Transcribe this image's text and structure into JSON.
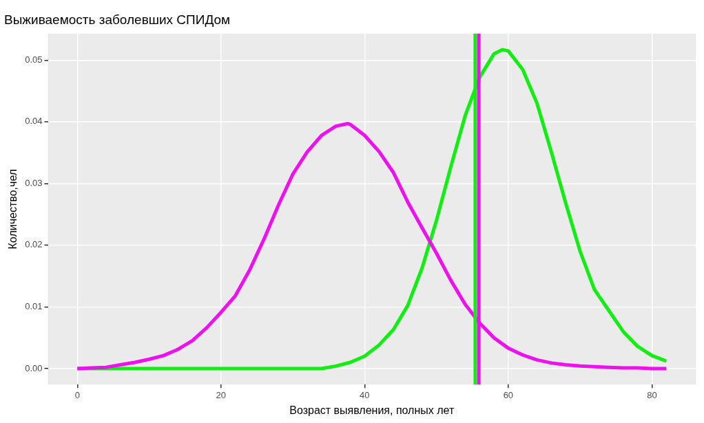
{
  "chart_data": {
    "type": "line",
    "title": "Выживаемость заболевших СПИДом",
    "xlabel": "Возраст выявления, полных лет",
    "ylabel": "Количество,чел",
    "xlim": [
      -4.1,
      86.1
    ],
    "xticks": [
      0,
      20,
      40,
      60,
      80
    ],
    "ylim": [
      -0.0026,
      0.0543
    ],
    "yticks": [
      {
        "value": 0,
        "label": "0.00"
      },
      {
        "value": 0.01,
        "label": "0.01"
      },
      {
        "value": 0.02,
        "label": "0.02"
      },
      {
        "value": 0.03,
        "label": "0.03"
      },
      {
        "value": 0.04,
        "label": "0.04"
      },
      {
        "value": 0.05,
        "label": "0.05"
      }
    ],
    "grid": true,
    "legend": false,
    "marker": "none",
    "line_style": "solid",
    "series": [
      {
        "color": "#ee10ee",
        "x": [
          0,
          2,
          4,
          6,
          8,
          10,
          12,
          14,
          16,
          18,
          20,
          22,
          24,
          26,
          28,
          30,
          32,
          34,
          36,
          37.6,
          38,
          40,
          42,
          44,
          46,
          48,
          50,
          52,
          54,
          56,
          58,
          60,
          62,
          64,
          66,
          68,
          70,
          72,
          74,
          76,
          78,
          80,
          82
        ],
        "values": [
          0,
          0.0001,
          0.0002,
          0.0006,
          0.001,
          0.0015,
          0.0021,
          0.0031,
          0.0045,
          0.0066,
          0.0091,
          0.0118,
          0.016,
          0.021,
          0.0265,
          0.0315,
          0.0351,
          0.0378,
          0.0393,
          0.0397,
          0.0396,
          0.0378,
          0.0352,
          0.0318,
          0.027,
          0.0228,
          0.0187,
          0.0143,
          0.0104,
          0.0074,
          0.005,
          0.0033,
          0.0022,
          0.0014,
          0.0009,
          0.0006,
          0.0004,
          0.0003,
          0.0002,
          0.0001,
          0.0001,
          0,
          0
        ]
      },
      {
        "color": "#11ee11",
        "x": [
          0,
          4,
          8,
          12,
          16,
          20,
          24,
          28,
          32,
          34,
          36,
          38,
          40,
          42,
          44,
          46,
          48,
          50,
          52,
          54,
          56,
          58,
          59.2,
          60,
          62,
          64,
          66,
          68,
          70,
          72,
          74,
          76,
          78,
          80,
          82
        ],
        "values": [
          0,
          0,
          0,
          0,
          0,
          0,
          0,
          0,
          0,
          0,
          0.0004,
          0.001,
          0.002,
          0.0038,
          0.0063,
          0.0102,
          0.0163,
          0.024,
          0.0327,
          0.041,
          0.0472,
          0.051,
          0.0517,
          0.0515,
          0.0485,
          0.043,
          0.0351,
          0.0268,
          0.019,
          0.0128,
          0.0094,
          0.006,
          0.0036,
          0.0021,
          0.0012
        ]
      }
    ],
    "ref_lines": [
      {
        "axis": "x",
        "value": 55.4,
        "color": "#11ee11"
      },
      {
        "axis": "x",
        "value": 55.9,
        "color": "#ee10ee"
      }
    ]
  }
}
